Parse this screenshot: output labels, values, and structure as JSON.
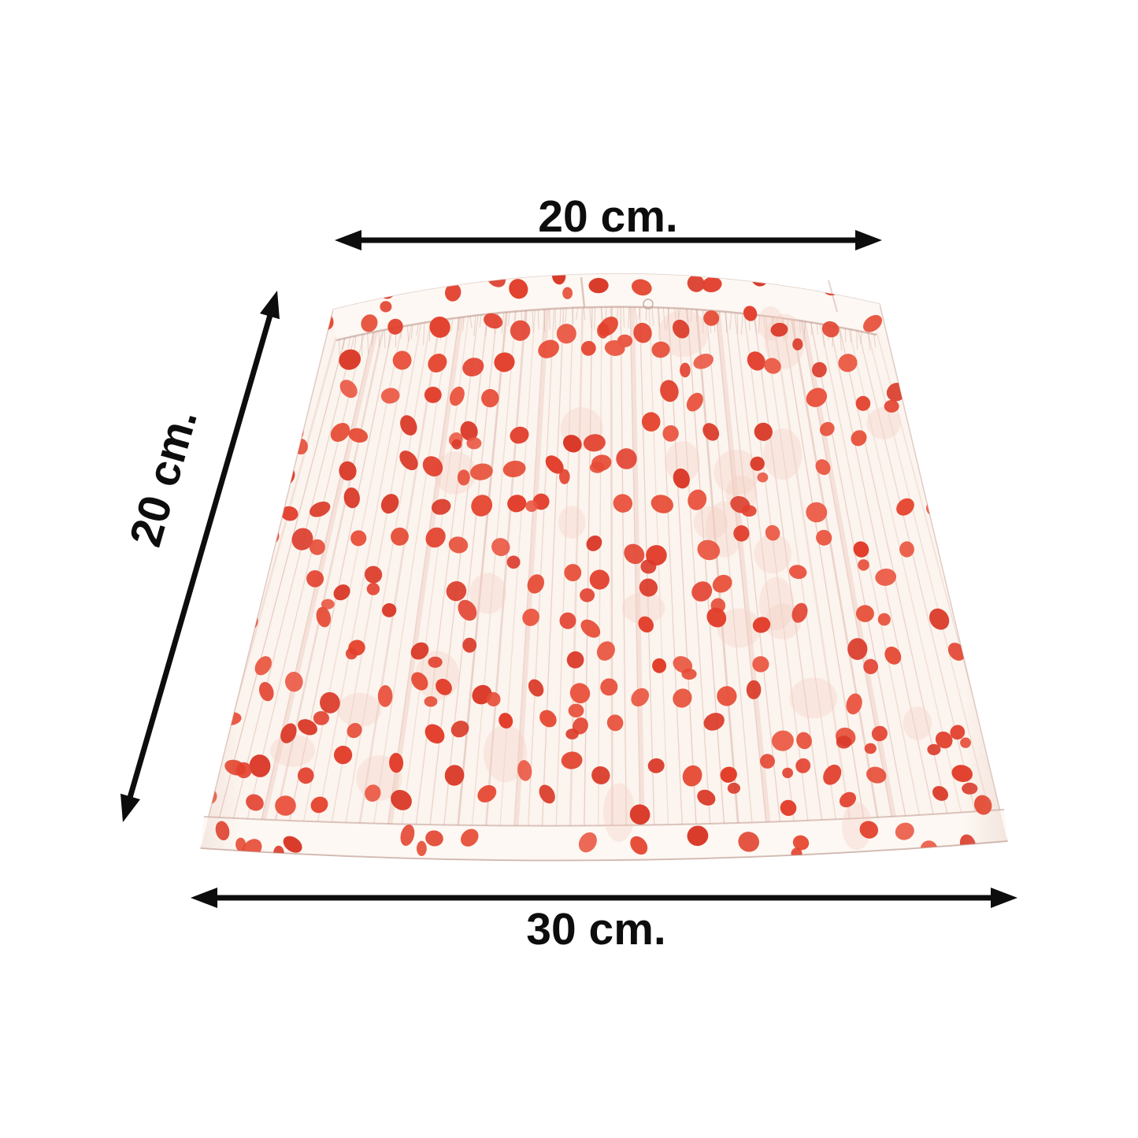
{
  "dimensions": {
    "top_width": {
      "label": "20 cm.",
      "value": 20,
      "unit": "cm"
    },
    "slant_height": {
      "label": "20 cm.",
      "value": 20,
      "unit": "cm"
    },
    "bottom_width": {
      "label": "30 cm.",
      "value": 30,
      "unit": "cm"
    }
  },
  "colors": {
    "background": "#ffffff",
    "annotation": "#0d0d0d",
    "dot_red": "#e2402d",
    "fabric": "#fcf4ee",
    "fabric_shadow": "#cfa497"
  }
}
